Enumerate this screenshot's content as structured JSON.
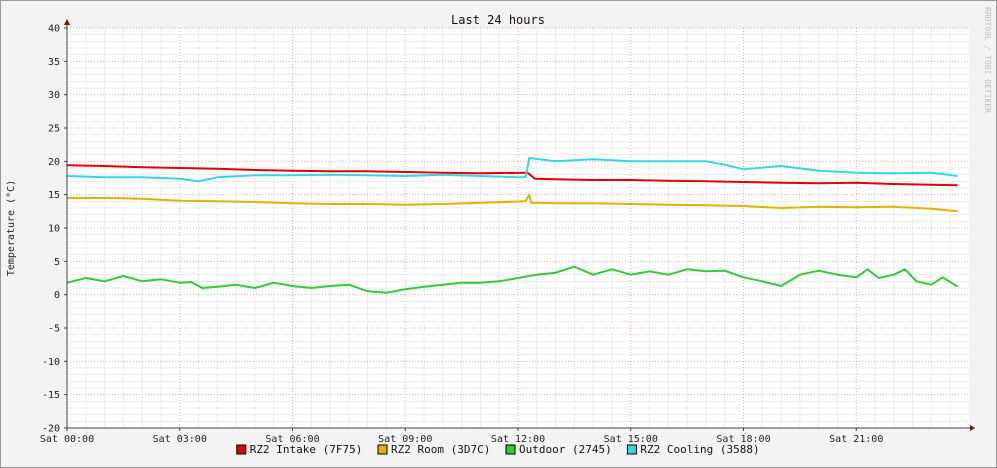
{
  "watermark": "RRDTOOL / TOBI OETIKER",
  "chart_data": {
    "type": "line",
    "title": "Last 24 hours",
    "ylabel": "Temperature (°C)",
    "ylim": [
      -20,
      40
    ],
    "yticks": [
      40,
      35,
      30,
      25,
      20,
      15,
      10,
      5,
      0,
      -5,
      -10,
      -15,
      -20
    ],
    "xlim": [
      0,
      24
    ],
    "xticks": [
      {
        "hour": 0,
        "label": "Sat 00:00"
      },
      {
        "hour": 3,
        "label": "Sat 03:00"
      },
      {
        "hour": 6,
        "label": "Sat 06:00"
      },
      {
        "hour": 9,
        "label": "Sat 09:00"
      },
      {
        "hour": 12,
        "label": "Sat 12:00"
      },
      {
        "hour": 15,
        "label": "Sat 15:00"
      },
      {
        "hour": 18,
        "label": "Sat 18:00"
      },
      {
        "hour": 21,
        "label": "Sat 21:00"
      }
    ],
    "grid": true,
    "legend_position": "bottom",
    "series": [
      {
        "name": "RZ2 Intake (7F75)",
        "color": "#e60000",
        "points": [
          [
            0,
            19.4
          ],
          [
            1,
            19.3
          ],
          [
            2,
            19.1
          ],
          [
            3,
            19.0
          ],
          [
            4,
            18.9
          ],
          [
            5,
            18.7
          ],
          [
            6,
            18.6
          ],
          [
            7,
            18.5
          ],
          [
            8,
            18.5
          ],
          [
            9,
            18.4
          ],
          [
            10,
            18.3
          ],
          [
            11,
            18.2
          ],
          [
            12.25,
            18.3
          ],
          [
            12.45,
            17.4
          ],
          [
            13,
            17.3
          ],
          [
            14,
            17.2
          ],
          [
            15,
            17.2
          ],
          [
            16,
            17.1
          ],
          [
            17,
            17.0
          ],
          [
            18,
            16.9
          ],
          [
            19,
            16.8
          ],
          [
            20,
            16.7
          ],
          [
            21,
            16.8
          ],
          [
            22,
            16.6
          ],
          [
            23,
            16.5
          ],
          [
            23.7,
            16.4
          ]
        ]
      },
      {
        "name": "RZ2 Room (3D7C)",
        "color": "#e0b400",
        "points": [
          [
            0,
            14.5
          ],
          [
            1,
            14.5
          ],
          [
            2,
            14.4
          ],
          [
            3,
            14.1
          ],
          [
            4,
            14.0
          ],
          [
            5,
            13.9
          ],
          [
            6,
            13.7
          ],
          [
            7,
            13.6
          ],
          [
            8,
            13.6
          ],
          [
            9,
            13.5
          ],
          [
            10,
            13.6
          ],
          [
            11,
            13.8
          ],
          [
            12.2,
            14.0
          ],
          [
            12.3,
            15.0
          ],
          [
            12.35,
            13.8
          ],
          [
            13,
            13.7
          ],
          [
            14,
            13.7
          ],
          [
            15,
            13.6
          ],
          [
            16,
            13.5
          ],
          [
            17,
            13.4
          ],
          [
            18,
            13.3
          ],
          [
            19,
            13.0
          ],
          [
            20,
            13.2
          ],
          [
            21,
            13.1
          ],
          [
            22,
            13.2
          ],
          [
            23,
            12.9
          ],
          [
            23.7,
            12.5
          ]
        ]
      },
      {
        "name": "Outdoor (2745)",
        "color": "#33cc33",
        "points": [
          [
            0,
            1.8
          ],
          [
            0.5,
            2.5
          ],
          [
            1,
            2.0
          ],
          [
            1.5,
            2.8
          ],
          [
            2,
            2.0
          ],
          [
            2.5,
            2.3
          ],
          [
            3,
            1.8
          ],
          [
            3.3,
            1.9
          ],
          [
            3.6,
            1.0
          ],
          [
            4,
            1.2
          ],
          [
            4.5,
            1.5
          ],
          [
            5,
            1.0
          ],
          [
            5.5,
            1.8
          ],
          [
            6,
            1.3
          ],
          [
            6.5,
            1.0
          ],
          [
            7,
            1.3
          ],
          [
            7.5,
            1.5
          ],
          [
            8,
            0.5
          ],
          [
            8.5,
            0.3
          ],
          [
            9,
            0.8
          ],
          [
            9.5,
            1.2
          ],
          [
            10,
            1.5
          ],
          [
            10.5,
            1.8
          ],
          [
            11,
            1.8
          ],
          [
            11.5,
            2.0
          ],
          [
            12,
            2.5
          ],
          [
            12.5,
            3.0
          ],
          [
            13,
            3.3
          ],
          [
            13.5,
            4.2
          ],
          [
            14,
            3.0
          ],
          [
            14.5,
            3.8
          ],
          [
            15,
            3.0
          ],
          [
            15.5,
            3.5
          ],
          [
            16,
            3.0
          ],
          [
            16.5,
            3.8
          ],
          [
            17,
            3.5
          ],
          [
            17.5,
            3.6
          ],
          [
            18,
            2.6
          ],
          [
            18.5,
            2.0
          ],
          [
            19,
            1.3
          ],
          [
            19.5,
            3.0
          ],
          [
            20,
            3.6
          ],
          [
            20.5,
            3.0
          ],
          [
            21,
            2.6
          ],
          [
            21.3,
            3.8
          ],
          [
            21.6,
            2.5
          ],
          [
            22,
            3.0
          ],
          [
            22.3,
            3.8
          ],
          [
            22.6,
            2.0
          ],
          [
            23,
            1.5
          ],
          [
            23.3,
            2.6
          ],
          [
            23.7,
            1.2
          ]
        ]
      },
      {
        "name": "RZ2 Cooling (3588)",
        "color": "#33d8e8",
        "points": [
          [
            0,
            17.8
          ],
          [
            1,
            17.6
          ],
          [
            2,
            17.6
          ],
          [
            3,
            17.4
          ],
          [
            3.5,
            17.0
          ],
          [
            4,
            17.6
          ],
          [
            5,
            17.9
          ],
          [
            6,
            17.9
          ],
          [
            7,
            18.0
          ],
          [
            8,
            17.9
          ],
          [
            9,
            17.8
          ],
          [
            10,
            18.0
          ],
          [
            11,
            17.8
          ],
          [
            12,
            17.6
          ],
          [
            12.2,
            17.6
          ],
          [
            12.3,
            20.5
          ],
          [
            13,
            20.0
          ],
          [
            14,
            20.3
          ],
          [
            15,
            20.0
          ],
          [
            16,
            20.0
          ],
          [
            17,
            20.0
          ],
          [
            17.5,
            19.5
          ],
          [
            18,
            18.8
          ],
          [
            19,
            19.3
          ],
          [
            20,
            18.6
          ],
          [
            21,
            18.3
          ],
          [
            22,
            18.2
          ],
          [
            23,
            18.3
          ],
          [
            23.7,
            17.8
          ]
        ]
      }
    ]
  }
}
